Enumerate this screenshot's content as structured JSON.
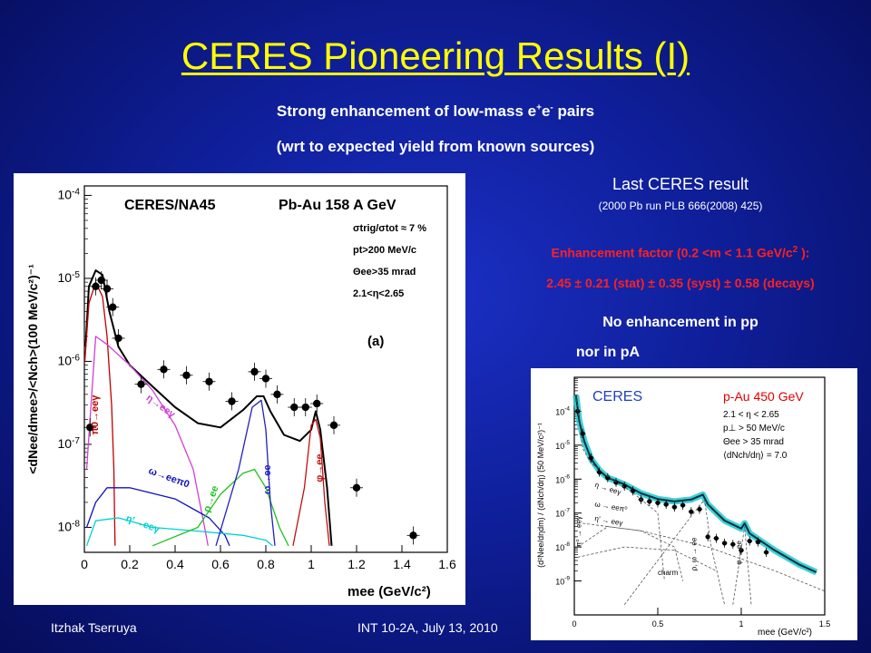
{
  "slide": {
    "title": "CERES Pioneering Results (I)",
    "subtitle_line1_a": "Strong enhancement of low-mass e",
    "subtitle_sup1": "+",
    "subtitle_line1_b": "e",
    "subtitle_sup2": "-",
    "subtitle_line1_c": " pairs",
    "subtitle_line2": "(wrt to expected yield from known sources)",
    "last_result_title": "Last CERES result",
    "last_result_sub": "(2000 Pb run PLB 666(2008) 425)",
    "enhancement_line1_a": "Enhancement factor (0.2 <m < 1.1 GeV/c",
    "enhancement_line1_sup": "2",
    "enhancement_line1_b": " ):",
    "enhancement_line2": "2.45 ± 0.21 (stat) ± 0.35 (syst) ± 0.58 (decays)",
    "no_enh_line1": "No enhancement in pp",
    "no_enh_line2": "nor in pA",
    "footer_left": "Itzhak Tserruya",
    "footer_right": "INT 10-2A, July 13, 2010"
  },
  "colors": {
    "title": "#ffff00",
    "enhancement": "#ff2020",
    "pi0": "#c00000",
    "eta": "#d040d0",
    "omega_dalitz": "#1010c0",
    "eta_prime": "#00d0d0",
    "rho": "#20c020",
    "omega": "#2020c0",
    "phi": "#c01010",
    "cocktail": "#000000",
    "band": "#20c8d0"
  },
  "chart_data": [
    {
      "type": "scatter",
      "title": "CERES/NA45",
      "system": "Pb-Au 158 A GeV",
      "cuts": [
        "σtrig/σtot ≈ 7 %",
        "pt>200 MeV/c",
        "Θee>35 mrad",
        "2.1<η<2.65"
      ],
      "panel_label": "(a)",
      "xlabel": "mee (GeV/c²)",
      "ylabel": "<dNee/dmee>/<Nch>(100 MeV/c²)⁻¹",
      "xlim": [
        0,
        1.6
      ],
      "ylim": [
        5e-09,
        0.00013
      ],
      "log_y": true,
      "x_ticks": [
        "0",
        "0.2",
        "0.4",
        "0.6",
        "0.8",
        "1",
        "1.2",
        "1.4",
        "1.6"
      ],
      "y_ticks": [
        {
          "v": 0.0001,
          "exp": "-4"
        },
        {
          "v": 1e-05,
          "exp": "-5"
        },
        {
          "v": 1e-06,
          "exp": "-6"
        },
        {
          "v": 1e-07,
          "exp": "-7"
        },
        {
          "v": 1e-08,
          "exp": "-8"
        }
      ],
      "data_points": [
        {
          "x": 0.025,
          "y": 1.6e-07
        },
        {
          "x": 0.05,
          "y": 8e-06
        },
        {
          "x": 0.075,
          "y": 9.5e-06
        },
        {
          "x": 0.1,
          "y": 7.5e-06
        },
        {
          "x": 0.125,
          "y": 4.5e-06
        },
        {
          "x": 0.15,
          "y": 1.9e-06
        },
        {
          "x": 0.25,
          "y": 5.3e-07
        },
        {
          "x": 0.35,
          "y": 8e-07
        },
        {
          "x": 0.45,
          "y": 6.8e-07
        },
        {
          "x": 0.55,
          "y": 5.7e-07
        },
        {
          "x": 0.65,
          "y": 3.3e-07
        },
        {
          "x": 0.75,
          "y": 7.5e-07
        },
        {
          "x": 0.8,
          "y": 6.2e-07
        },
        {
          "x": 0.85,
          "y": 4e-07
        },
        {
          "x": 0.925,
          "y": 2.8e-07
        },
        {
          "x": 0.975,
          "y": 2.8e-07
        },
        {
          "x": 1.025,
          "y": 3.1e-07
        },
        {
          "x": 1.1,
          "y": 1.7e-07
        },
        {
          "x": 1.2,
          "y": 3e-08
        },
        {
          "x": 1.45,
          "y": 8e-09
        }
      ],
      "series": [
        {
          "label": "cocktail",
          "points": [
            [
              0.005,
              1.5e-06
            ],
            [
              0.02,
              8e-06
            ],
            [
              0.05,
              1.25e-05
            ],
            [
              0.08,
              1.1e-05
            ],
            [
              0.11,
              4e-06
            ],
            [
              0.15,
              1.5e-06
            ],
            [
              0.2,
              9e-07
            ],
            [
              0.3,
              5e-07
            ],
            [
              0.4,
              2.8e-07
            ],
            [
              0.5,
              1.8e-07
            ],
            [
              0.6,
              1.6e-07
            ],
            [
              0.7,
              2.6e-07
            ],
            [
              0.76,
              3.8e-07
            ],
            [
              0.79,
              3.8e-07
            ],
            [
              0.82,
              2.5e-07
            ],
            [
              0.88,
              1.3e-07
            ],
            [
              0.95,
              1.1e-07
            ],
            [
              1.0,
              1.5e-07
            ],
            [
              1.02,
              2.5e-07
            ],
            [
              1.04,
              1.5e-07
            ],
            [
              1.07,
              3e-08
            ],
            [
              1.09,
              6e-09
            ]
          ]
        },
        {
          "label": "π0→eeγ",
          "points": [
            [
              0.002,
              1e-06
            ],
            [
              0.02,
              5e-06
            ],
            [
              0.05,
              9e-06
            ],
            [
              0.08,
              6e-06
            ],
            [
              0.1,
              2e-06
            ],
            [
              0.12,
              3e-07
            ],
            [
              0.13,
              5e-08
            ],
            [
              0.135,
              6e-09
            ]
          ]
        },
        {
          "label": "η→eeγ",
          "points": [
            [
              0.01,
              5e-08
            ],
            [
              0.05,
              2e-06
            ],
            [
              0.1,
              1.6e-06
            ],
            [
              0.2,
              9e-07
            ],
            [
              0.3,
              4.5e-07
            ],
            [
              0.4,
              1.7e-07
            ],
            [
              0.48,
              5e-08
            ],
            [
              0.53,
              1e-08
            ],
            [
              0.545,
              6e-09
            ]
          ]
        },
        {
          "label": "ω→eeπ0",
          "points": [
            [
              0.01,
              1e-08
            ],
            [
              0.05,
              2e-08
            ],
            [
              0.1,
              3e-08
            ],
            [
              0.2,
              3e-08
            ],
            [
              0.4,
              2.2e-08
            ],
            [
              0.55,
              1.3e-08
            ],
            [
              0.62,
              8e-09
            ],
            [
              0.64,
              6e-09
            ]
          ]
        },
        {
          "label": "η'→eeγ",
          "points": [
            [
              0.01,
              6e-09
            ],
            [
              0.05,
              1.2e-08
            ],
            [
              0.15,
              1.3e-08
            ],
            [
              0.3,
              1e-08
            ],
            [
              0.5,
              9e-09
            ],
            [
              0.7,
              8e-09
            ],
            [
              0.8,
              7e-09
            ],
            [
              0.83,
              6e-09
            ]
          ]
        },
        {
          "label": "ρ→ee",
          "points": [
            [
              0.3,
              6e-09
            ],
            [
              0.5,
              1e-08
            ],
            [
              0.6,
              2.5e-08
            ],
            [
              0.7,
              4.5e-08
            ],
            [
              0.75,
              5e-08
            ],
            [
              0.8,
              3e-08
            ],
            [
              0.86,
              1e-08
            ],
            [
              0.9,
              6e-09
            ]
          ]
        },
        {
          "label": "ω→ee",
          "points": [
            [
              0.58,
              6e-09
            ],
            [
              0.68,
              5e-08
            ],
            [
              0.74,
              2.8e-07
            ],
            [
              0.78,
              3.4e-07
            ],
            [
              0.8,
              1.5e-07
            ],
            [
              0.82,
              2e-08
            ],
            [
              0.84,
              6e-09
            ]
          ]
        },
        {
          "label": "φ→ee",
          "points": [
            [
              0.92,
              6e-09
            ],
            [
              0.97,
              3e-08
            ],
            [
              1.0,
              1.7e-07
            ],
            [
              1.02,
              2e-07
            ],
            [
              1.04,
              1.2e-07
            ],
            [
              1.06,
              2e-08
            ],
            [
              1.08,
              6e-09
            ]
          ]
        }
      ]
    },
    {
      "type": "scatter",
      "title": "CERES",
      "system": "p-Au 450 GeV",
      "cuts": [
        "2.1 < η < 2.65",
        "p⊥ > 50 MeV/c",
        "Θee > 35 mrad",
        "⟨dNch/dη⟩ = 7.0"
      ],
      "xlabel": "mee (GeV/c²)",
      "ylabel": "(d²Nee/dηdm) / (dNch/dη) (50 MeV/c²)⁻¹",
      "xlim": [
        0,
        1.5
      ],
      "ylim": [
        1e-10,
        0.001
      ],
      "log_y": true,
      "x_ticks": [
        "0",
        "0.5",
        "1",
        "1.5"
      ],
      "y_ticks": [
        {
          "v": 0.0001,
          "exp": "-4"
        },
        {
          "v": 1e-05,
          "exp": "-5"
        },
        {
          "v": 1e-06,
          "exp": "-6"
        },
        {
          "v": 1e-07,
          "exp": "-7"
        },
        {
          "v": 1e-08,
          "exp": "-8"
        },
        {
          "v": 1e-09,
          "exp": "-9"
        }
      ],
      "curve_labels": [
        "η → eeγ",
        "ω → eeπ⁰",
        "η' → eeγ",
        "π⁰ → eeγ",
        "ρ, ω → ee",
        "φ → ee",
        "charm"
      ],
      "data_points": [
        {
          "x": 0.02,
          "y": 0.0001
        },
        {
          "x": 0.05,
          "y": 2.2e-05
        },
        {
          "x": 0.1,
          "y": 4.2e-06
        },
        {
          "x": 0.15,
          "y": 1.6e-06
        },
        {
          "x": 0.2,
          "y": 1.1e-06
        },
        {
          "x": 0.25,
          "y": 8e-07
        },
        {
          "x": 0.3,
          "y": 6.2e-07
        },
        {
          "x": 0.35,
          "y": 4.5e-07
        },
        {
          "x": 0.4,
          "y": 2.5e-07
        },
        {
          "x": 0.45,
          "y": 2.2e-07
        },
        {
          "x": 0.5,
          "y": 2e-07
        },
        {
          "x": 0.55,
          "y": 1.8e-07
        },
        {
          "x": 0.6,
          "y": 1.5e-07
        },
        {
          "x": 0.65,
          "y": 1.7e-07
        },
        {
          "x": 0.7,
          "y": 1.1e-07
        },
        {
          "x": 0.75,
          "y": 1.3e-07
        },
        {
          "x": 0.8,
          "y": 2e-08
        },
        {
          "x": 0.85,
          "y": 1.8e-08
        },
        {
          "x": 0.9,
          "y": 1.3e-08
        },
        {
          "x": 0.95,
          "y": 1.2e-08
        },
        {
          "x": 1.0,
          "y": 8e-09
        },
        {
          "x": 1.05,
          "y": 1.5e-08
        },
        {
          "x": 1.1,
          "y": 1.4e-08
        },
        {
          "x": 1.15,
          "y": 7e-09
        }
      ],
      "series": [
        {
          "label": "total",
          "points": [
            [
              0.01,
              0.0003
            ],
            [
              0.03,
              5e-05
            ],
            [
              0.06,
              1.3e-05
            ],
            [
              0.1,
              4e-06
            ],
            [
              0.15,
              1.8e-06
            ],
            [
              0.2,
              1.1e-06
            ],
            [
              0.3,
              7e-07
            ],
            [
              0.4,
              3.8e-07
            ],
            [
              0.5,
              2.6e-07
            ],
            [
              0.6,
              2.2e-07
            ],
            [
              0.7,
              2.5e-07
            ],
            [
              0.77,
              3.5e-07
            ],
            [
              0.8,
              1.8e-07
            ],
            [
              0.9,
              6e-08
            ],
            [
              1.0,
              3.5e-08
            ],
            [
              1.02,
              5e-08
            ],
            [
              1.05,
              2.5e-08
            ],
            [
              1.2,
              8e-09
            ],
            [
              1.35,
              3e-09
            ],
            [
              1.45,
              1.8e-09
            ]
          ]
        }
      ]
    }
  ]
}
